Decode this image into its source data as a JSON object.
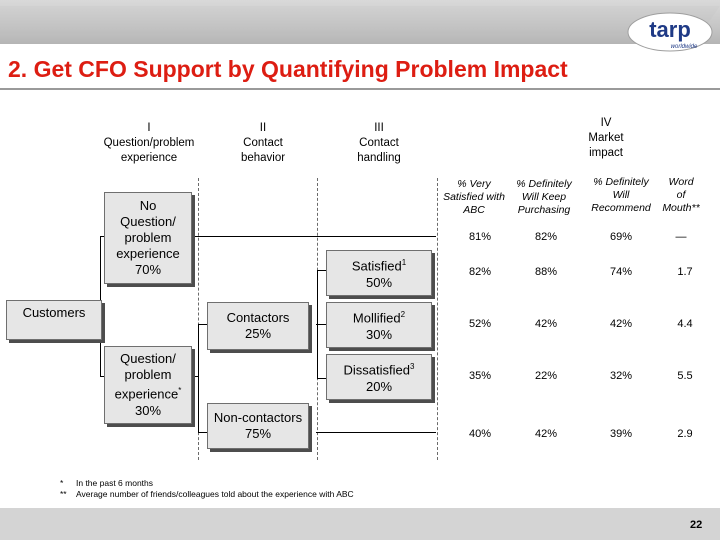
{
  "slide": {
    "title": "2. Get CFO Support by Quantifying Problem Impact",
    "logo_text": "tarp",
    "logo_subtext": "worldwide",
    "page_number": "22"
  },
  "columns": [
    {
      "numeral": "I",
      "label_line1": "Question/problem",
      "label_line2": "experience"
    },
    {
      "numeral": "II",
      "label_line1": "Contact",
      "label_line2": "behavior"
    },
    {
      "numeral": "III",
      "label_line1": "Contact",
      "label_line2": "handling"
    },
    {
      "numeral": "IV",
      "label_line1": "Market",
      "label_line2": "impact"
    }
  ],
  "boxes": {
    "customers": "Customers",
    "no_problem": [
      "No",
      "Question/",
      "problem",
      "experience",
      "70%"
    ],
    "problem": [
      "Question/",
      "problem",
      "experience",
      "30%"
    ],
    "problem_marker": "*",
    "contactors": [
      "Contactors",
      "25%"
    ],
    "non_contactors": [
      "Non-contactors",
      "75%"
    ],
    "satisfied": {
      "label": "Satisfied",
      "sup": "1",
      "pct": "50%"
    },
    "mollified": {
      "label": "Mollified",
      "sup": "2",
      "pct": "30%"
    },
    "dissatisfied": {
      "label": "Dissatisfied",
      "sup": "3",
      "pct": "20%"
    }
  },
  "market_headers": [
    [
      "% Very",
      "Satisfied with",
      "ABC"
    ],
    [
      "% Definitely",
      "Will Keep",
      "Purchasing"
    ],
    [
      "% Definitely",
      "Will",
      "Recommend"
    ],
    [
      "Word",
      "of",
      "Mouth**"
    ]
  ],
  "market_rows": [
    [
      "81%",
      "82%",
      "69%",
      "—"
    ],
    [
      "82%",
      "88%",
      "74%",
      "1.7"
    ],
    [
      "52%",
      "42%",
      "42%",
      "4.4"
    ],
    [
      "35%",
      "22%",
      "32%",
      "5.5"
    ],
    [
      "40%",
      "42%",
      "39%",
      "2.9"
    ]
  ],
  "footnotes": [
    {
      "mark": "*",
      "text": "In the past 6 months"
    },
    {
      "mark": "**",
      "text": "Average number of friends/colleagues told about the experience with ABC"
    }
  ]
}
